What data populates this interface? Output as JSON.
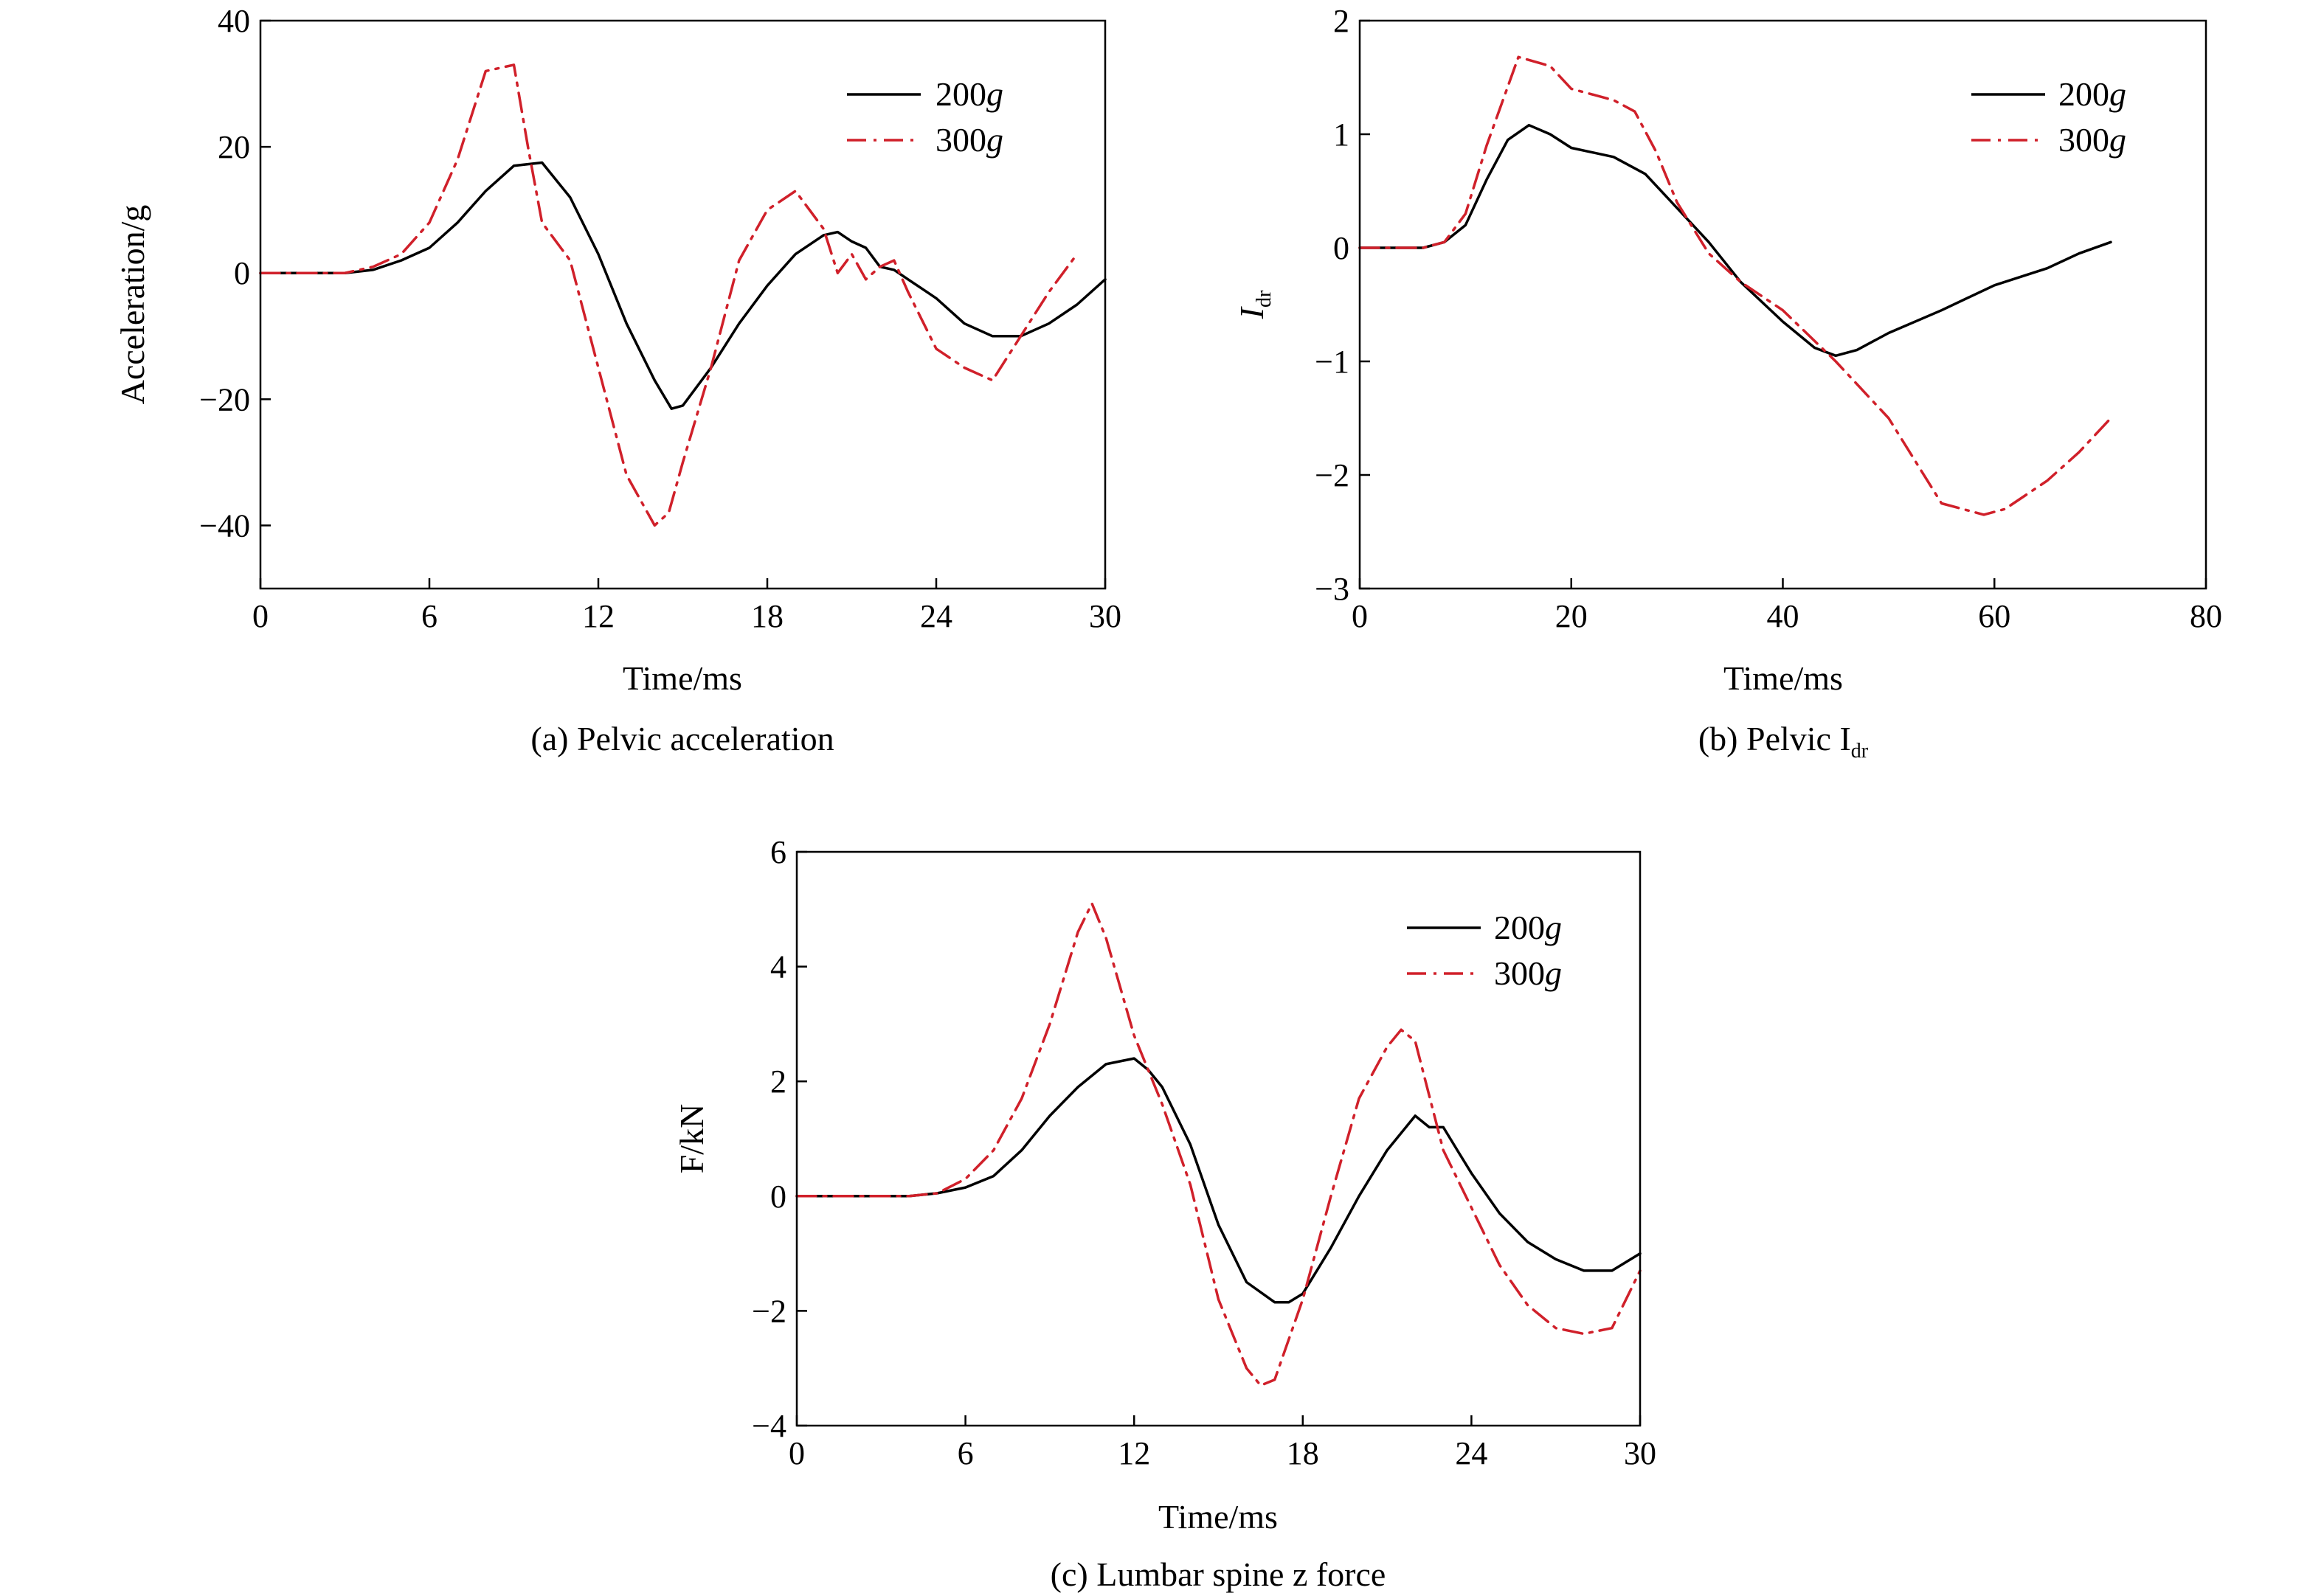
{
  "colors": {
    "s200": "#000000",
    "s300": "#d0202a"
  },
  "chart_data": [
    {
      "type": "line",
      "caption": "(a) Pelvic acceleration",
      "xlabel": "Time/ms",
      "ylabel": "Acceleration/g",
      "xlim": [
        0,
        30
      ],
      "ylim": [
        -50,
        40
      ],
      "xticks": [
        "0",
        "6",
        "12",
        "18",
        "24",
        "30"
      ],
      "yticks": [
        "40",
        "20",
        "0",
        "−20",
        "−40"
      ],
      "xtick_values": [
        0,
        6,
        12,
        18,
        24,
        30
      ],
      "ytick_values": [
        40,
        20,
        0,
        -20,
        -40
      ],
      "legend": {
        "position": "top-right",
        "labels": [
          "200g",
          "300g"
        ]
      },
      "series": [
        {
          "name": "200g",
          "style": "solid",
          "x": [
            0,
            3,
            4,
            5,
            6,
            7,
            8,
            9,
            10,
            11,
            12,
            13,
            14,
            14.6,
            15,
            16,
            17,
            18,
            19,
            20,
            20.5,
            21,
            21.5,
            22,
            22.5,
            23,
            23.5,
            24,
            24.5,
            25,
            26,
            27,
            28,
            29,
            30
          ],
          "y": [
            0,
            0,
            0.5,
            2,
            4,
            8,
            13,
            17,
            17.5,
            12,
            3,
            -8,
            -17,
            -21.5,
            -21,
            -15,
            -8,
            -2,
            3,
            6,
            6.5,
            5,
            4,
            1,
            0.5,
            -1,
            -2.5,
            -4,
            -6,
            -8,
            -10,
            -10,
            -8,
            -5,
            -1
          ]
        },
        {
          "name": "300g",
          "style": "dashdot",
          "x": [
            0,
            3,
            4,
            5,
            6,
            7,
            8,
            9,
            9.5,
            10,
            11,
            12,
            13,
            14,
            14.5,
            15,
            16,
            17,
            18,
            19,
            19.5,
            20,
            20.5,
            21,
            21.5,
            22,
            22.5,
            23,
            24,
            25,
            26,
            27,
            28,
            29
          ],
          "y": [
            0,
            0,
            1,
            3,
            8,
            18,
            32,
            33,
            20,
            8,
            2,
            -15,
            -32,
            -40,
            -38,
            -30,
            -15,
            2,
            10,
            13,
            10,
            7,
            0,
            3,
            -1,
            1,
            2,
            -3,
            -12,
            -15,
            -17,
            -10,
            -3,
            3
          ]
        }
      ]
    },
    {
      "type": "line",
      "caption": "(b) Pelvic I",
      "caption_sub": "dr",
      "xlabel": "Time/ms",
      "ylabel": "I",
      "ylabel_sub": "dr",
      "xlim": [
        0,
        80
      ],
      "ylim": [
        -3,
        2
      ],
      "xticks": [
        "0",
        "20",
        "40",
        "60",
        "80"
      ],
      "yticks": [
        "2",
        "1",
        "0",
        "−1",
        "−2",
        "−3"
      ],
      "xtick_values": [
        0,
        20,
        40,
        60,
        80
      ],
      "ytick_values": [
        2,
        1,
        0,
        -1,
        -2,
        -3
      ],
      "legend": {
        "position": "top-right",
        "labels": [
          "200g",
          "300g"
        ]
      },
      "series": [
        {
          "name": "200g",
          "style": "solid",
          "x": [
            0,
            6,
            8,
            10,
            12,
            14,
            16,
            18,
            20,
            24,
            27,
            30,
            33,
            36,
            40,
            43,
            45,
            47,
            50,
            55,
            60,
            65,
            68,
            71
          ],
          "y": [
            0,
            0,
            0.05,
            0.2,
            0.6,
            0.95,
            1.08,
            1.0,
            0.88,
            0.8,
            0.65,
            0.35,
            0.05,
            -0.3,
            -0.65,
            -0.88,
            -0.95,
            -0.9,
            -0.75,
            -0.55,
            -0.33,
            -0.18,
            -0.05,
            0.05
          ]
        },
        {
          "name": "300g",
          "style": "dashdot",
          "x": [
            0,
            6,
            8,
            10,
            12,
            15,
            18,
            20,
            24,
            26,
            28,
            30,
            33,
            36,
            40,
            45,
            50,
            53,
            55,
            59,
            61,
            65,
            68,
            71
          ],
          "y": [
            0,
            0,
            0.05,
            0.3,
            0.9,
            1.68,
            1.6,
            1.4,
            1.3,
            1.2,
            0.85,
            0.4,
            -0.05,
            -0.3,
            -0.55,
            -1.0,
            -1.5,
            -1.95,
            -2.25,
            -2.35,
            -2.3,
            -2.05,
            -1.8,
            -1.5
          ]
        }
      ]
    },
    {
      "type": "line",
      "caption": "(c) Lumbar spine z force",
      "xlabel": "Time/ms",
      "ylabel": "F/kN",
      "xlim": [
        0,
        30
      ],
      "ylim": [
        -4,
        6
      ],
      "xticks": [
        "0",
        "6",
        "12",
        "18",
        "24",
        "30"
      ],
      "yticks": [
        "6",
        "4",
        "2",
        "0",
        "−2",
        "−4"
      ],
      "xtick_values": [
        0,
        6,
        12,
        18,
        24,
        30
      ],
      "ytick_values": [
        6,
        4,
        2,
        0,
        -2,
        -4
      ],
      "legend": {
        "position": "top-right",
        "labels": [
          "200g",
          "300g"
        ]
      },
      "series": [
        {
          "name": "200g",
          "style": "solid",
          "x": [
            0,
            4,
            5,
            6,
            7,
            8,
            9,
            10,
            11,
            12,
            12.5,
            13,
            14,
            15,
            16,
            17,
            17.5,
            18,
            19,
            20,
            21,
            22,
            22.5,
            23,
            23.5,
            24,
            25,
            26,
            27,
            28,
            29,
            30
          ],
          "y": [
            0,
            0,
            0.05,
            0.15,
            0.35,
            0.8,
            1.4,
            1.9,
            2.3,
            2.4,
            2.2,
            1.9,
            0.9,
            -0.5,
            -1.5,
            -1.85,
            -1.85,
            -1.7,
            -0.9,
            0.0,
            0.8,
            1.4,
            1.2,
            1.2,
            0.8,
            0.4,
            -0.3,
            -0.8,
            -1.1,
            -1.3,
            -1.3,
            -1.0
          ]
        },
        {
          "name": "300g",
          "style": "dashdot",
          "x": [
            0,
            4,
            5,
            6,
            7,
            8,
            9,
            10,
            10.5,
            11,
            12,
            13,
            14,
            15,
            16,
            16.5,
            17,
            18,
            19,
            20,
            21,
            21.5,
            22,
            23,
            24,
            25,
            26,
            27,
            28,
            29,
            30
          ],
          "y": [
            0,
            0,
            0.05,
            0.3,
            0.8,
            1.7,
            3.0,
            4.6,
            5.1,
            4.5,
            2.8,
            1.6,
            0.2,
            -1.8,
            -3.0,
            -3.3,
            -3.2,
            -1.8,
            0.0,
            1.7,
            2.6,
            2.9,
            2.7,
            0.8,
            -0.2,
            -1.2,
            -1.9,
            -2.3,
            -2.4,
            -2.3,
            -1.3
          ]
        }
      ]
    }
  ]
}
